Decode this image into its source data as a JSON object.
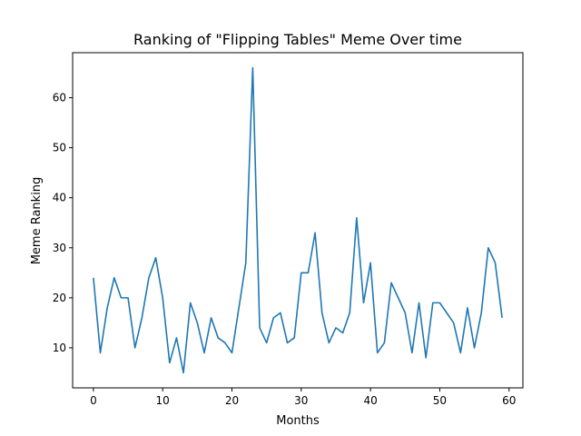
{
  "chart_data": {
    "type": "line",
    "title": "Ranking of \"Flipping Tables\" Meme Over time",
    "xlabel": "Months",
    "ylabel": "Meme Ranking",
    "xlim": [
      -3,
      62
    ],
    "ylim": [
      2,
      69
    ],
    "xticks": [
      0,
      10,
      20,
      30,
      40,
      50,
      60
    ],
    "yticks": [
      10,
      20,
      30,
      40,
      50,
      60
    ],
    "grid": false,
    "line_color": "#1f77b4",
    "series": [
      {
        "x": [
          0,
          1,
          2,
          3,
          4,
          5,
          6,
          7,
          8,
          9,
          10,
          11,
          12,
          13,
          14,
          15,
          16,
          17,
          18,
          19,
          20,
          21,
          22,
          23,
          24,
          25,
          26,
          27,
          28,
          29,
          30,
          31,
          32,
          33,
          34,
          35,
          36,
          37,
          38,
          39,
          40,
          41,
          42,
          43,
          44,
          45,
          46,
          47,
          48,
          49,
          50,
          51,
          52,
          53,
          54,
          55,
          56,
          57,
          58,
          59
        ],
        "values": [
          24,
          9,
          18,
          24,
          20,
          20,
          10,
          16,
          24,
          28,
          20,
          7,
          12,
          5,
          19,
          15,
          9,
          16,
          12,
          11,
          9,
          18,
          27,
          66,
          14,
          11,
          16,
          17,
          11,
          12,
          25,
          25,
          33,
          17,
          11,
          14,
          13,
          17,
          36,
          19,
          27,
          9,
          11,
          23,
          20,
          17,
          9,
          19,
          8,
          19,
          19,
          17,
          15,
          9,
          18,
          10,
          17,
          30,
          27,
          16
        ]
      }
    ]
  }
}
